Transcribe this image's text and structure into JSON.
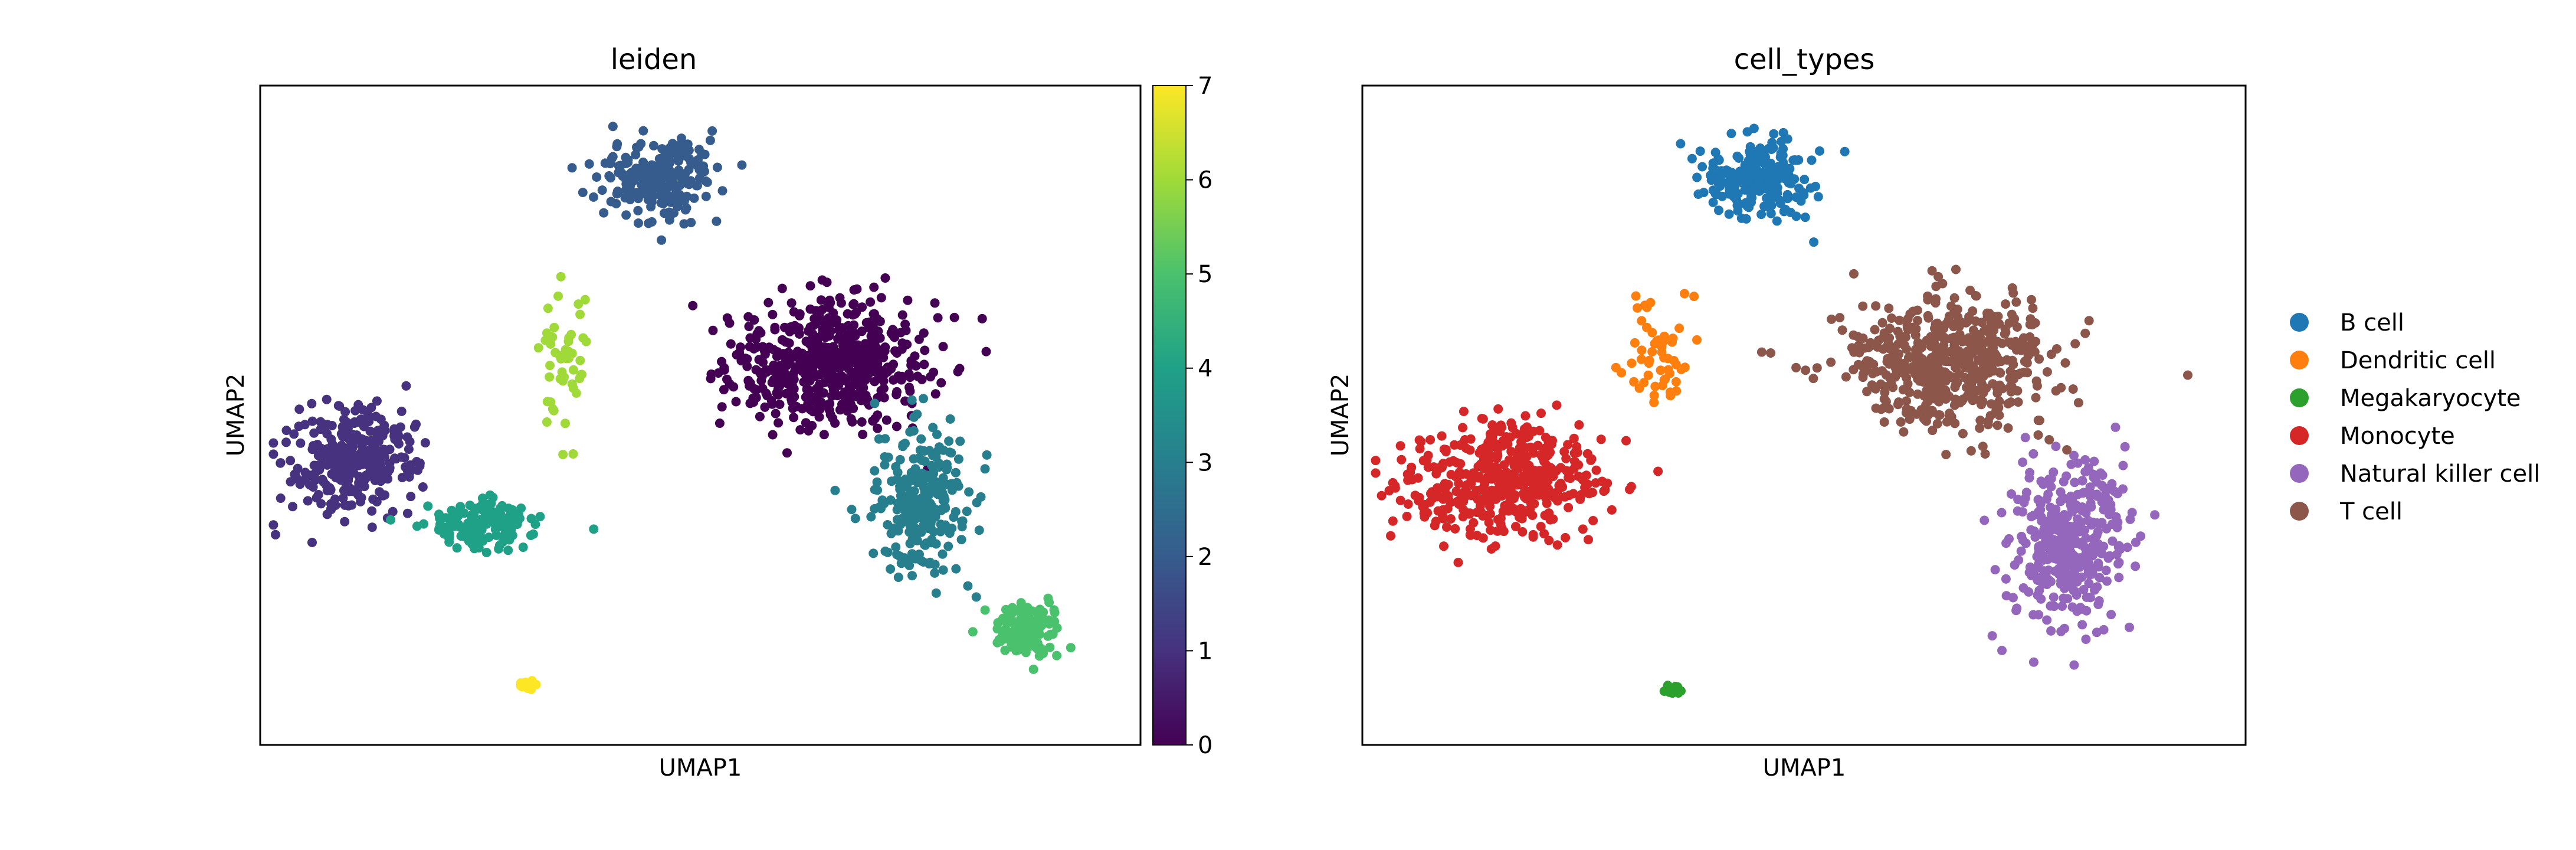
{
  "chart_data": [
    {
      "type": "scatter",
      "title": "leiden",
      "xlabel": "UMAP1",
      "ylabel": "UMAP2",
      "color_by": "leiden",
      "colormap": "viridis",
      "grid": false,
      "colorbar": {
        "range": [
          0,
          7
        ],
        "ticks": [
          {
            "value": 0,
            "label": "0"
          },
          {
            "value": 1,
            "label": "1"
          },
          {
            "value": 2,
            "label": "2"
          },
          {
            "value": 3,
            "label": "3"
          },
          {
            "value": 4,
            "label": "4"
          },
          {
            "value": 5,
            "label": "5"
          },
          {
            "value": 6,
            "label": "6"
          },
          {
            "value": 7,
            "label": "7"
          }
        ]
      },
      "xlim": [
        -10,
        10
      ],
      "ylim": [
        -10,
        10
      ],
      "clusters": [
        {
          "value": 0,
          "color": "#440154",
          "center": [
            3.0,
            1.6
          ],
          "spread": [
            2.3,
            2.0
          ],
          "n": 560
        },
        {
          "value": 1,
          "color": "#46327e",
          "center": [
            -7.9,
            -1.4
          ],
          "spread": [
            1.5,
            1.6
          ],
          "n": 300
        },
        {
          "value": 2,
          "color": "#365c8d",
          "center": [
            -1.0,
            7.2
          ],
          "spread": [
            1.3,
            1.2
          ],
          "n": 210
        },
        {
          "value": 3,
          "color": "#277f8e",
          "center": [
            5.0,
            -2.6
          ],
          "spread": [
            1.1,
            2.2
          ],
          "n": 260
        },
        {
          "value": 4,
          "color": "#1fa187",
          "center": [
            -5.0,
            -3.3
          ],
          "spread": [
            1.1,
            0.8
          ],
          "n": 150
        },
        {
          "value": 5,
          "color": "#4ac16d",
          "center": [
            7.4,
            -6.5
          ],
          "spread": [
            0.8,
            0.9
          ],
          "n": 130
        },
        {
          "value": 6,
          "color": "#a0da39",
          "center": [
            -3.1,
            1.6
          ],
          "spread": [
            0.6,
            2.0
          ],
          "n": 50
        },
        {
          "value": 7,
          "color": "#fde725",
          "center": [
            -3.9,
            -8.2
          ],
          "spread": [
            0.2,
            0.2
          ],
          "n": 12
        }
      ]
    },
    {
      "type": "scatter",
      "title": "cell_types",
      "xlabel": "UMAP1",
      "ylabel": "UMAP2",
      "color_by": "cell_types",
      "grid": false,
      "legend_position": "right",
      "xlim": [
        -10,
        10
      ],
      "ylim": [
        -10,
        10
      ],
      "categories": [
        {
          "name": "B cell",
          "color": "#1f77b4",
          "center": [
            -1.0,
            7.2
          ],
          "spread": [
            1.3,
            1.2
          ],
          "n": 210
        },
        {
          "name": "Dendritic cell",
          "color": "#ff7f0e",
          "center": [
            -3.3,
            1.8
          ],
          "spread": [
            0.8,
            2.0
          ],
          "n": 55
        },
        {
          "name": "Megakaryocyte",
          "color": "#2ca02c",
          "center": [
            -3.0,
            -8.3
          ],
          "spread": [
            0.2,
            0.2
          ],
          "n": 12
        },
        {
          "name": "Monocyte",
          "color": "#d62728",
          "center": [
            -6.8,
            -2.0
          ],
          "spread": [
            2.3,
            1.8
          ],
          "n": 450
        },
        {
          "name": "Natural killer cell",
          "color": "#9467bd",
          "center": [
            6.0,
            -3.8
          ],
          "spread": [
            1.3,
            2.4
          ],
          "n": 390
        },
        {
          "name": "T cell",
          "color": "#8c564b",
          "center": [
            3.3,
            1.6
          ],
          "spread": [
            2.3,
            2.0
          ],
          "n": 560
        }
      ]
    }
  ]
}
